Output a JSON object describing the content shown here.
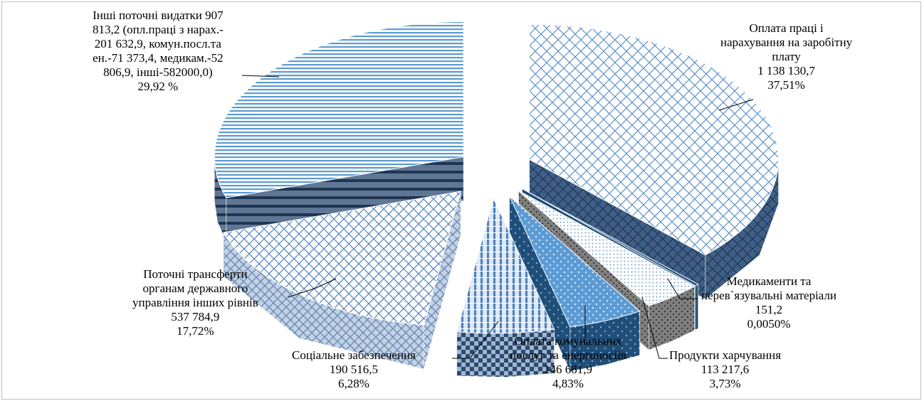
{
  "chart_data": {
    "type": "pie",
    "style": "3d-exploded",
    "slices": [
      {
        "key": "salary",
        "name": "Оплата праці і нарахування на заробітну плату",
        "value": 1138130.7,
        "percent": 37.51,
        "label_lines": [
          "Оплата праці і",
          "нарахування на заробітну",
          "плату",
          "1 138 130,7",
          "37,51%"
        ],
        "colors": {
          "top": "#dcebf9",
          "pattern": "#5b8fc9",
          "side": "#4e6b8f",
          "side_dark": "#2d4a6e"
        }
      },
      {
        "key": "medicine",
        "name": "Медикаменти та перев`язувальні матеріали",
        "value": 151.2,
        "percent": 0.005,
        "label_lines": [
          "Медикаменти та",
          "перев`язувальні матеріали",
          "151,2",
          "0,0050%"
        ],
        "colors": {
          "top": "#1f4e79",
          "pattern": "#1f4e79",
          "side": "#1f4e79",
          "side_dark": "#163a5c"
        }
      },
      {
        "key": "food",
        "name": "Продукти харчування",
        "value": 113217.6,
        "percent": 3.73,
        "label_lines": [
          "Продукти харчування",
          "113 217,6",
          "3,73%"
        ],
        "colors": {
          "top": "#eaf2fb",
          "pattern": "#5b8fc9",
          "side": "#7f7f7f",
          "side_dark": "#595959"
        }
      },
      {
        "key": "utilities",
        "name": "Оплата комунальних послуг та енергоносіїв",
        "value": 146681.9,
        "percent": 4.83,
        "label_lines": [
          "Оплата комунальних",
          "послуг та енергоносіїв",
          "146 681,9",
          "4,83%"
        ],
        "colors": {
          "top": "#5b9bd5",
          "pattern": "#cfe3f6",
          "side": "#1f4e79",
          "side_dark": "#163a5c"
        }
      },
      {
        "key": "social",
        "name": "Соціальне забезпечення",
        "value": 190516.5,
        "percent": 6.28,
        "label_lines": [
          "Соціальне забезпечення",
          "190 516,5",
          "6,28%"
        ],
        "colors": {
          "top": "#cfe0f3",
          "pattern": "#4f81bd",
          "side": "#8fa9c8",
          "side_dark": "#2d4a6e"
        }
      },
      {
        "key": "transfers",
        "name": "Поточні трансферти органам державного управління інших рівнів",
        "value": 537784.9,
        "percent": 17.72,
        "label_lines": [
          "Поточні трансферти",
          "органам державного",
          "управління інших рівнів",
          "537 784,9",
          "17,72%"
        ],
        "colors": {
          "top": "#ffffff",
          "pattern": "#5b8fc9",
          "side": "#c9d6e6",
          "side_dark": "#7f9cc0"
        }
      },
      {
        "key": "other",
        "name": "Інші поточні видатки",
        "value": 907813.2,
        "percent": 29.92,
        "label_lines": [
          "Інші поточні видатки 907",
          "813,2 (опл.праці з нарах.-",
          "201 632,9, комун.посл.та",
          "ен.-71 373,4, медикам.-52",
          "806,9, інші-582000,0)",
          "29,92 %"
        ],
        "colors": {
          "top": "#ffffff",
          "pattern": "#5b9bd5",
          "side": "#2d4a6e",
          "side_dark": "#1b2f47"
        }
      }
    ]
  }
}
